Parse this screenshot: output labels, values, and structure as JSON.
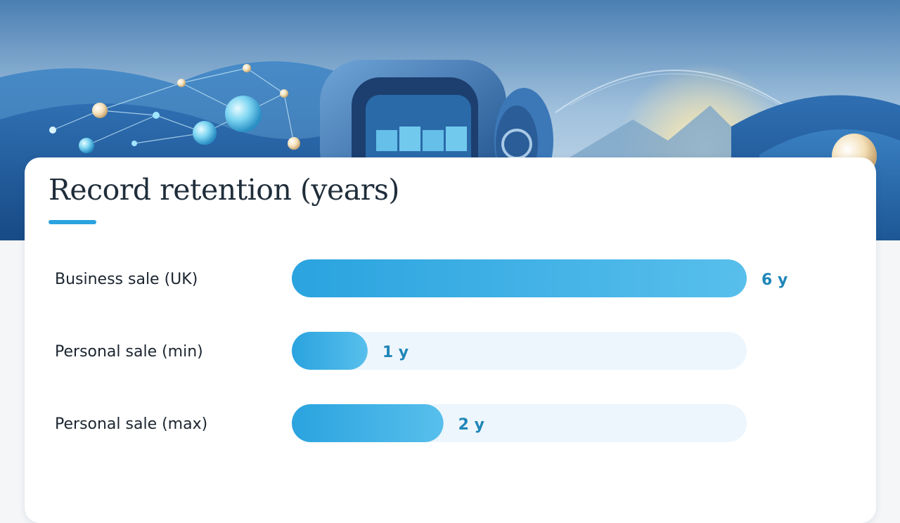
{
  "header": {
    "title": "Record retention (years)"
  },
  "chart_data": {
    "type": "bar",
    "orientation": "horizontal",
    "title": "Record retention (years)",
    "categories": [
      "Business sale (UK)",
      "Personal sale (min)",
      "Personal sale (max)"
    ],
    "values": [
      6,
      1,
      2
    ],
    "value_labels": [
      "6 y",
      "1 y",
      "2 y"
    ],
    "xlim": [
      0,
      6
    ],
    "grid": false,
    "legend": "none"
  },
  "colors": {
    "bar_start": "#2aa3df",
    "bar_end": "#58bfec",
    "track": "#edf6fc",
    "value_text": "#1f86b8",
    "accent": "#2aa3df"
  },
  "icons": [
    "vault-illustration",
    "network-node-illustration"
  ]
}
